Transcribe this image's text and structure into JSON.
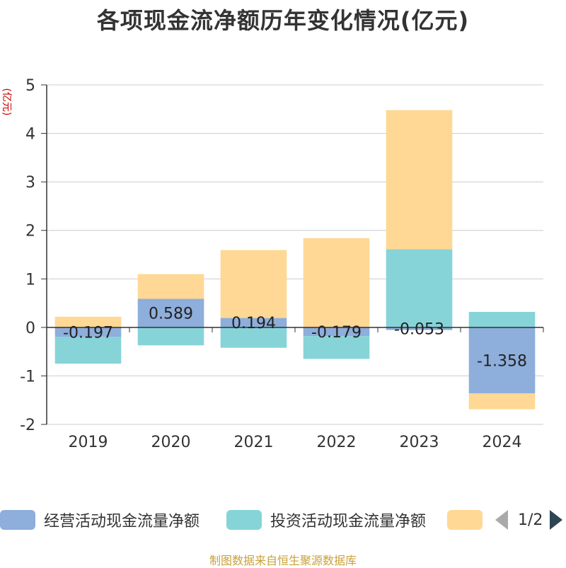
{
  "title": "各项现金流净额历年变化情况(亿元)",
  "source": "制图数据来自恒生聚源数据库",
  "legend_pager": "1/2",
  "colors": {
    "operating": "#8eaedb",
    "investing": "#86d4d8",
    "financing": "#fed894",
    "axis": "#333333",
    "grid": "#cccccc",
    "unit": "#cc0000"
  },
  "chart_data": {
    "type": "bar",
    "stacked": true,
    "title": "各项现金流净额历年变化情况(亿元)",
    "ylabel": "(亿元)",
    "ylim": [
      -2,
      5
    ],
    "yticks": [
      -2,
      -1,
      0,
      1,
      2,
      3,
      4,
      5
    ],
    "grid": true,
    "legend_position": "bottom",
    "categories": [
      "2019",
      "2020",
      "2021",
      "2022",
      "2023",
      "2024"
    ],
    "series": [
      {
        "name": "经营活动现金流量净额",
        "color": "#8eaedb",
        "values": [
          -0.197,
          0.589,
          0.194,
          -0.179,
          -0.053,
          -1.358
        ],
        "labels": [
          "-0.197",
          "0.589",
          "0.194",
          "-0.179",
          "-0.053",
          "-1.358"
        ]
      },
      {
        "name": "投资活动现金流量净额",
        "color": "#86d4d8",
        "values": [
          -0.55,
          -0.37,
          -0.42,
          -0.47,
          1.61,
          0.32
        ]
      },
      {
        "name": "",
        "color": "#fed894",
        "values": [
          0.22,
          0.51,
          1.4,
          1.84,
          2.87,
          -0.33
        ]
      }
    ]
  }
}
